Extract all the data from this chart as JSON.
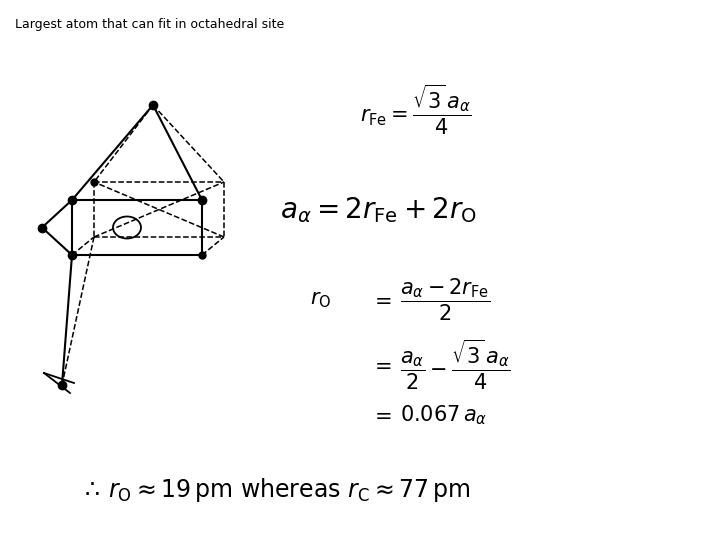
{
  "title": "Largest atom that can fit in octahedral site",
  "title_fontsize": 9,
  "bg_color": "#ffffff",
  "fig_width": 7.2,
  "fig_height": 5.4,
  "fig_dpi": 100
}
